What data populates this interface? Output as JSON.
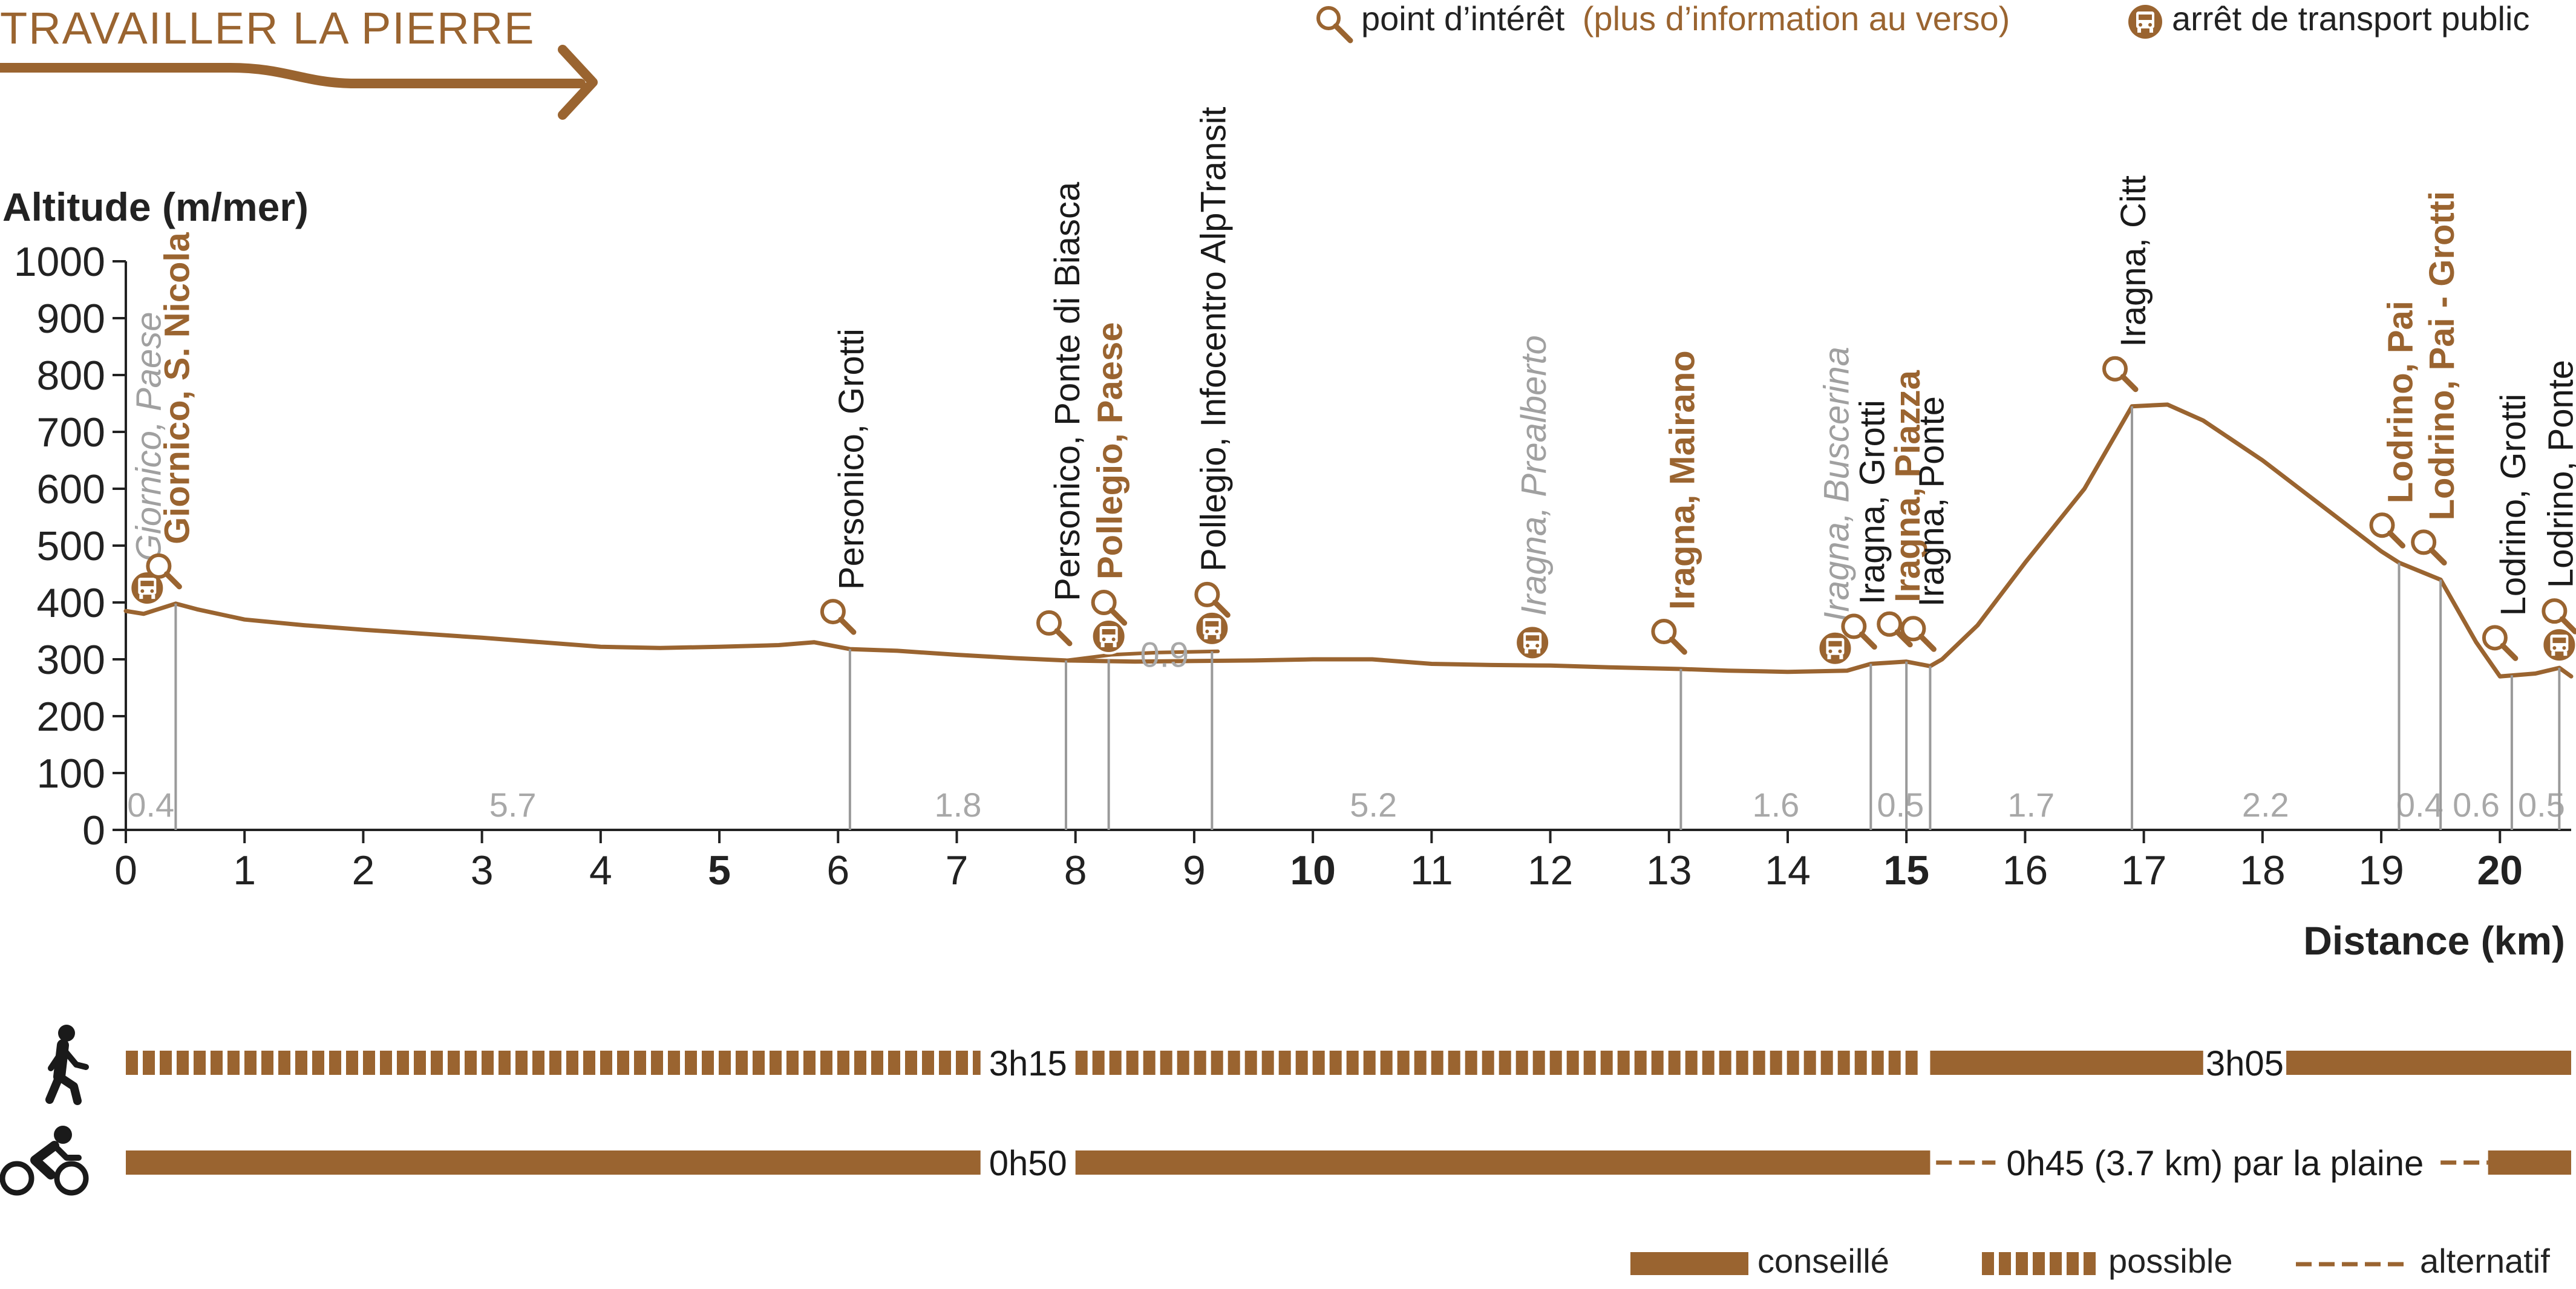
{
  "header": {
    "title": "TRAVAILLER LA PIERRE",
    "legend_poi_plain": "point d’intérêt",
    "legend_poi_highlight": "(plus d’information au verso)",
    "legend_transport": "arrêt de transport public",
    "brand_color": "#9a6430"
  },
  "chart_data": {
    "type": "line",
    "ylabel": "Altitude (m/mer)",
    "xlabel": "Distance (km)",
    "xlim": [
      0,
      20.6
    ],
    "ylim": [
      0,
      1000
    ],
    "yticks": [
      0,
      100,
      200,
      300,
      400,
      500,
      600,
      700,
      800,
      900,
      1000
    ],
    "xticks": [
      0,
      1,
      2,
      3,
      4,
      5,
      6,
      7,
      8,
      9,
      10,
      11,
      12,
      13,
      14,
      15,
      16,
      17,
      18,
      19,
      20
    ],
    "series": [
      {
        "x": [
          0,
          0.15,
          0.3,
          0.42,
          0.6,
          1.0,
          1.5,
          2.0,
          3.0,
          3.5,
          4.0,
          4.5,
          5.0,
          5.5,
          5.8,
          6.1,
          6.5,
          7.0,
          7.5,
          7.92,
          8.5,
          9.0,
          9.5,
          10.0,
          10.5,
          11.0,
          11.5,
          12.0,
          12.5,
          13.1,
          13.5,
          14.0,
          14.5,
          14.7,
          15.0,
          15.2,
          15.3,
          15.6,
          16.0,
          16.5,
          16.9,
          17.2,
          17.5,
          18.0,
          18.5,
          19.0,
          19.15,
          19.5,
          19.8,
          20.0,
          20.3,
          20.5,
          20.6
        ],
        "y": [
          385,
          380,
          390,
          398,
          388,
          370,
          360,
          352,
          338,
          330,
          322,
          320,
          322,
          325,
          330,
          318,
          315,
          308,
          302,
          298,
          296,
          297,
          298,
          300,
          300,
          292,
          290,
          289,
          286,
          283,
          280,
          278,
          280,
          292,
          296,
          288,
          300,
          360,
          470,
          600,
          745,
          748,
          720,
          650,
          570,
          490,
          470,
          440,
          330,
          270,
          275,
          285,
          270
        ]
      },
      {
        "x": [
          7.92,
          8.3,
          8.7,
          9.2
        ],
        "y": [
          298,
          308,
          312,
          314
        ]
      }
    ],
    "segments": [
      {
        "label": "0.4",
        "x0": 0,
        "x1": 0.42
      },
      {
        "label": "5.7",
        "x0": 0.42,
        "x1": 6.1
      },
      {
        "label": "1.8",
        "x0": 6.1,
        "x1": 7.92
      },
      {
        "label": "5.2",
        "x0": 7.92,
        "x1": 13.1
      },
      {
        "label": "1.6",
        "x0": 13.1,
        "x1": 14.7
      },
      {
        "label": "0.5",
        "x0": 14.7,
        "x1": 15.2
      },
      {
        "label": "1.7",
        "x0": 15.2,
        "x1": 16.9
      },
      {
        "label": "2.2",
        "x0": 16.9,
        "x1": 19.15
      },
      {
        "label": "0.4",
        "x0": 19.15,
        "x1": 19.5
      },
      {
        "label": "0.6",
        "x0": 19.5,
        "x1": 20.1
      },
      {
        "label": "0.5",
        "x0": 20.1,
        "x1": 20.6
      }
    ],
    "variant_label": {
      "text": "0.9",
      "x": 8.75,
      "y": 312
    },
    "points": [
      {
        "label": "Giornico, Paese",
        "x": 0.18,
        "y": 385,
        "icon": "bus",
        "style": "grey-italic"
      },
      {
        "label": "Giornico, S. Nicola",
        "x": 0.42,
        "y": 398,
        "icon": "poi",
        "style": "brown-bold"
      },
      {
        "label": "Personico, Grotti",
        "x": 6.1,
        "y": 318,
        "icon": "poi",
        "style": "black"
      },
      {
        "label": "Personico, Ponte di Biasca",
        "x": 7.92,
        "y": 298,
        "icon": "poi",
        "style": "black"
      },
      {
        "label": "Pollegio, Paese",
        "x": 8.28,
        "y": 300,
        "icon": "poi-bus",
        "style": "brown-bold"
      },
      {
        "label": "Pollegio, Infocentro AlpTransit",
        "x": 9.15,
        "y": 314,
        "icon": "poi-bus",
        "style": "black"
      },
      {
        "label": "Iragna, Prealberto",
        "x": 11.85,
        "y": 289,
        "icon": "bus",
        "style": "grey-italic"
      },
      {
        "label": "Iragna, Mairano",
        "x": 13.1,
        "y": 283,
        "icon": "poi",
        "style": "brown-bold"
      },
      {
        "label": "Iragna, Buscerina",
        "x": 14.4,
        "y": 279,
        "icon": "bus",
        "style": "grey-italic"
      },
      {
        "label": "Iragna, Grotti",
        "x": 14.7,
        "y": 292,
        "icon": "poi",
        "style": "black"
      },
      {
        "label": "Iragna, Piazza",
        "x": 15.0,
        "y": 296,
        "icon": "poi",
        "style": "brown-bold"
      },
      {
        "label": "Iragna, Ponte",
        "x": 15.2,
        "y": 288,
        "icon": "poi",
        "style": "black"
      },
      {
        "label": "Iragna, Citt",
        "x": 16.9,
        "y": 745,
        "icon": "poi",
        "style": "black"
      },
      {
        "label": "Lodrino, Pai",
        "x": 19.15,
        "y": 470,
        "icon": "poi",
        "style": "brown-bold"
      },
      {
        "label": "Lodrino, Pai - Grotti",
        "x": 19.5,
        "y": 440,
        "icon": "poi",
        "style": "brown-bold"
      },
      {
        "label": "Lodrino, Grotti",
        "x": 20.1,
        "y": 272,
        "icon": "poi",
        "style": "black"
      },
      {
        "label": "Lodrino, Ponte",
        "x": 20.5,
        "y": 285,
        "icon": "poi-bus",
        "style": "black"
      }
    ]
  },
  "activities": {
    "walk": {
      "icon": "hiker-icon",
      "segments": [
        {
          "x0": 0,
          "x1": 7.2,
          "style": "possible"
        },
        {
          "x0": 8.0,
          "x1": 15.1,
          "style": "possible"
        },
        {
          "x0": 15.2,
          "x1": 17.5,
          "style": "conseille"
        },
        {
          "x0": 18.2,
          "x1": 20.6,
          "style": "conseille"
        }
      ],
      "labels": [
        {
          "text": "3h15",
          "x": 7.6
        },
        {
          "text": "3h05",
          "x": 17.85
        }
      ]
    },
    "bike": {
      "icon": "cyclist-icon",
      "segments": [
        {
          "x0": 0,
          "x1": 7.2,
          "style": "conseille"
        },
        {
          "x0": 8.0,
          "x1": 15.2,
          "style": "conseille"
        },
        {
          "x0": 15.25,
          "x1": 15.75,
          "style": "alternatif"
        },
        {
          "x0": 19.5,
          "x1": 19.9,
          "style": "alternatif"
        },
        {
          "x0": 19.9,
          "x1": 20.6,
          "style": "conseille"
        }
      ],
      "labels": [
        {
          "text": "0h50",
          "x": 7.6
        },
        {
          "text": "0h45 (3.7 km) par la plaine",
          "x": 17.6
        }
      ]
    }
  },
  "legend": {
    "conseille": "conseillé",
    "possible": "possible",
    "alternatif": "alternatif"
  }
}
